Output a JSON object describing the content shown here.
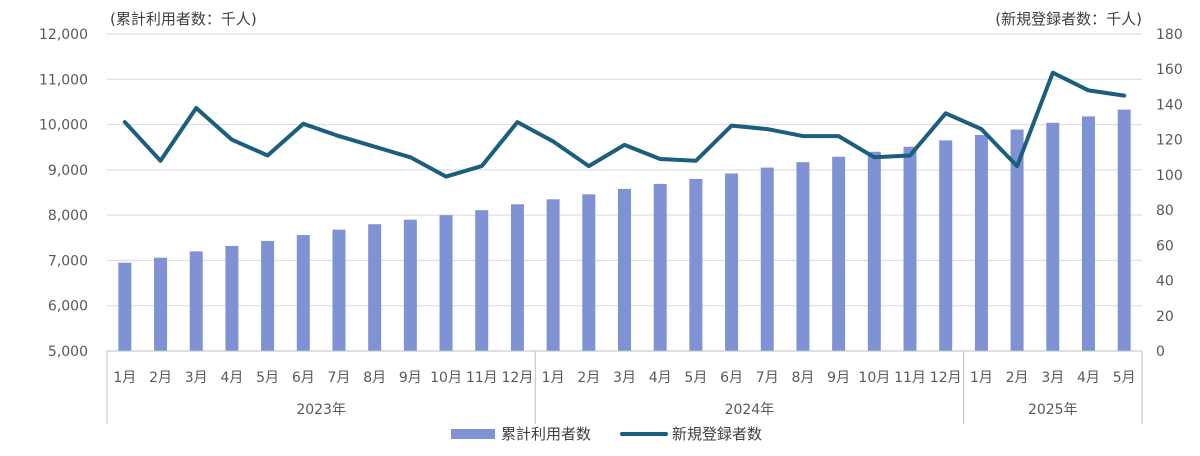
{
  "chart_data": {
    "type": "bar+line",
    "left_axis_unit": "(累計利用者数：千人)",
    "right_axis_unit": "(新規登録者数：千人)",
    "y_left": {
      "min": 5000,
      "max": 12000,
      "step": 1000,
      "tick_labels": [
        "5,000",
        "6,000",
        "7,000",
        "8,000",
        "9,000",
        "10,000",
        "11,000",
        "12,000"
      ]
    },
    "y_right": {
      "min": 0,
      "max": 180,
      "step": 20,
      "tick_labels": [
        "0",
        "20",
        "40",
        "60",
        "80",
        "100",
        "120",
        "140",
        "160",
        "180"
      ]
    },
    "categories": [
      "1月",
      "2月",
      "3月",
      "4月",
      "5月",
      "6月",
      "7月",
      "8月",
      "9月",
      "10月",
      "11月",
      "12月",
      "1月",
      "2月",
      "3月",
      "4月",
      "5月",
      "6月",
      "7月",
      "8月",
      "9月",
      "10月",
      "11月",
      "12月",
      "1月",
      "2月",
      "3月",
      "4月",
      "5月"
    ],
    "year_groups": [
      {
        "label": "2023年",
        "count": 12
      },
      {
        "label": "2024年",
        "count": 12
      },
      {
        "label": "2025年",
        "count": 5
      }
    ],
    "series": [
      {
        "name": "累計利用者数",
        "type": "bar",
        "axis": "left",
        "color": "#7f93d4",
        "values": [
          6950,
          7060,
          7200,
          7320,
          7430,
          7560,
          7680,
          7800,
          7900,
          8000,
          8110,
          8240,
          8350,
          8460,
          8580,
          8690,
          8800,
          8920,
          9050,
          9170,
          9290,
          9400,
          9510,
          9650,
          9770,
          9890,
          10040,
          10180,
          10330
        ]
      },
      {
        "name": "新規登録者数",
        "type": "line",
        "axis": "right",
        "color": "#1b5e7e",
        "values": [
          130,
          108,
          138,
          120,
          111,
          129,
          122,
          116,
          110,
          99,
          105,
          130,
          119,
          105,
          117,
          109,
          108,
          128,
          126,
          122,
          122,
          110,
          111,
          135,
          126,
          105,
          158,
          148,
          145
        ]
      }
    ]
  }
}
